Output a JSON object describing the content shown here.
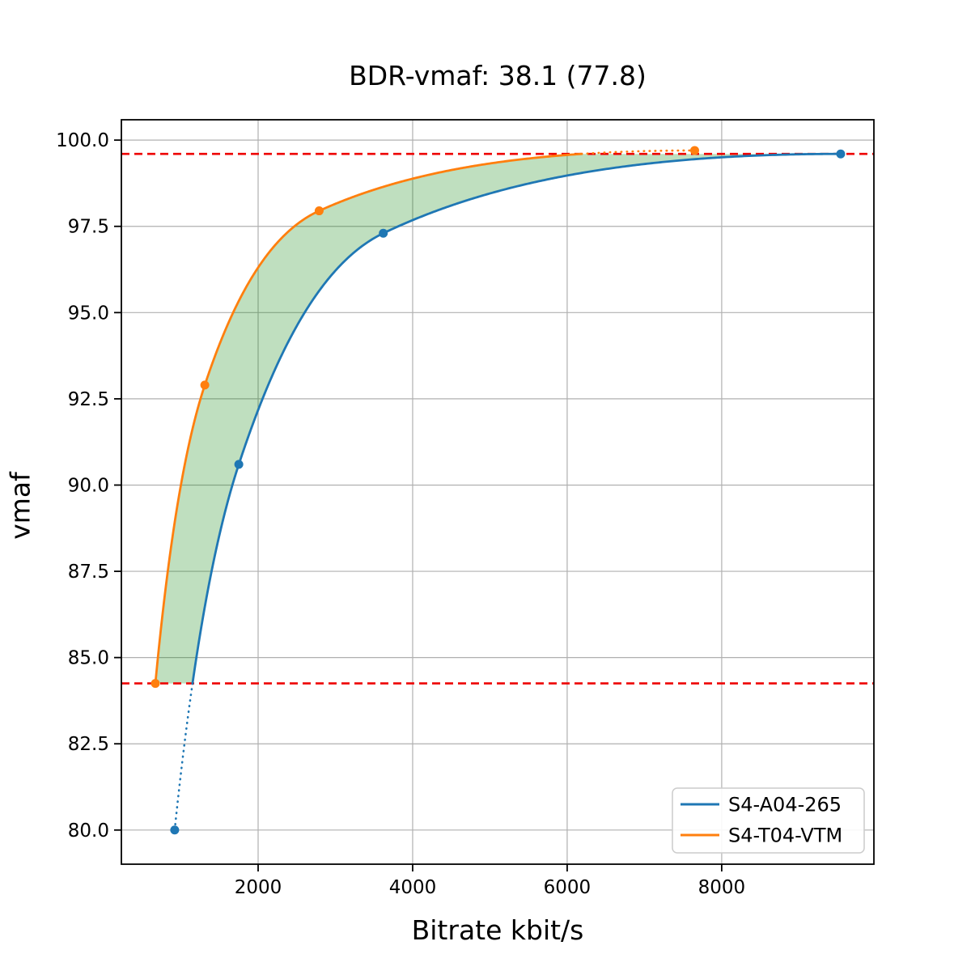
{
  "chart_data": {
    "type": "line",
    "title": "BDR-vmaf: 38.1 (77.8)",
    "xlabel": "Bitrate kbit/s",
    "ylabel": "vmaf",
    "xlim": [
      230,
      9970
    ],
    "ylim": [
      79.01,
      100.59
    ],
    "xticks": [
      2000,
      4000,
      6000,
      8000
    ],
    "yticks": [
      80.0,
      82.5,
      85.0,
      87.5,
      90.0,
      92.5,
      95.0,
      97.5,
      100.0
    ],
    "grid": true,
    "legend_position": "lower right",
    "series": [
      {
        "name": "S4-A04-265",
        "color": "#1f77b4",
        "points": [
          [
            920,
            80.0
          ],
          [
            1750,
            90.6
          ],
          [
            3620,
            97.3
          ],
          [
            9540,
            99.6
          ]
        ]
      },
      {
        "name": "S4-T04-VTM",
        "color": "#ff7f0e",
        "points": [
          [
            670,
            84.25
          ],
          [
            1310,
            92.9
          ],
          [
            2790,
            97.95
          ],
          [
            7650,
            99.7
          ]
        ]
      }
    ],
    "bd_region": {
      "lower_bound_vmaf": 84.25,
      "upper_bound_vmaf": 99.6,
      "bound_line_color": "#ee0000",
      "fill_color": "rgba(0,128,0,0.25)"
    },
    "colors": {
      "grid": "#b0b0b0",
      "spine": "#000000",
      "text": "#000000"
    }
  },
  "legend": {
    "items": [
      "S4-A04-265",
      "S4-T04-VTM"
    ]
  }
}
